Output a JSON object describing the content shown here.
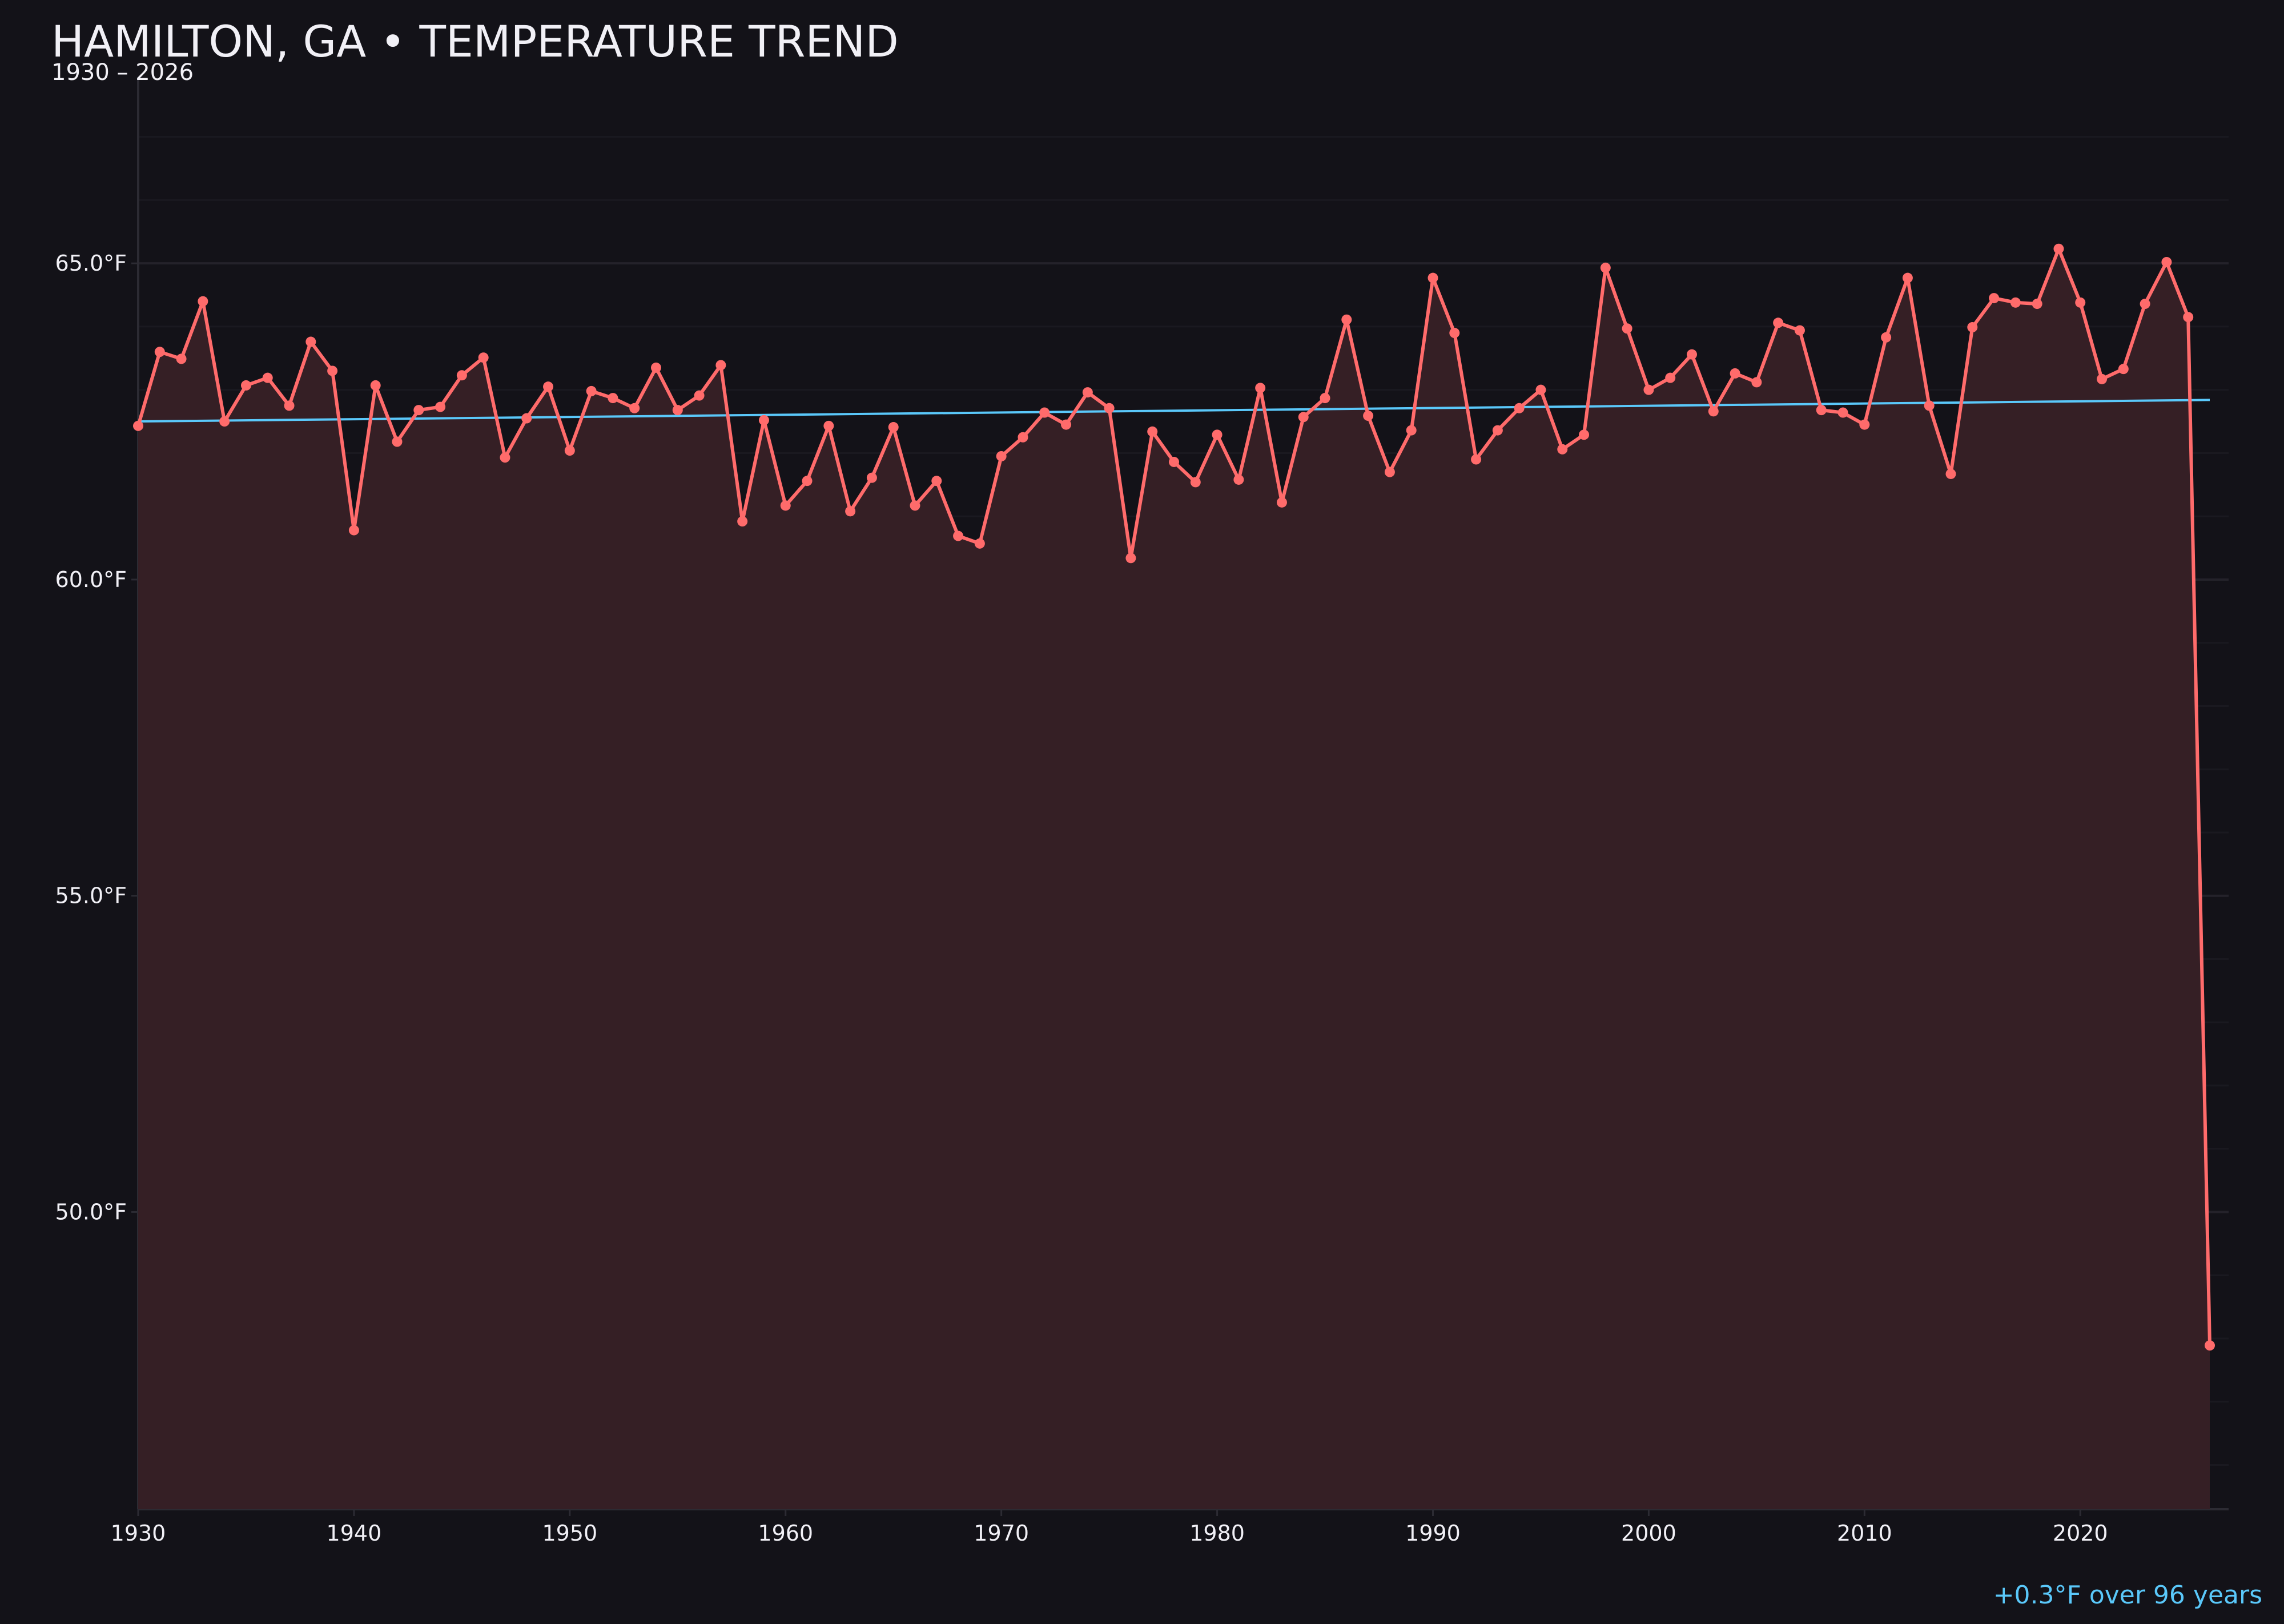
{
  "header": {
    "title": "HAMILTON, GA • TEMPERATURE TREND",
    "subtitle": "1930 – 2026"
  },
  "footer": {
    "trend_note": "+0.3°F over 96 years"
  },
  "colors": {
    "background": "#131218",
    "series_line": "#ff6b6b",
    "area_fill": "#351f25",
    "trend_line": "#5ac8fa",
    "text": "#f1f0f6"
  },
  "chart_data": {
    "type": "area",
    "title": "HAMILTON, GA • TEMPERATURE TREND",
    "subtitle": "1930 – 2026",
    "xlabel": "",
    "ylabel": "",
    "xlim": [
      1930,
      2027
    ],
    "ylim": [
      45.3,
      67.9
    ],
    "grid": true,
    "x_ticks": [
      1930,
      1940,
      1950,
      1960,
      1970,
      1980,
      1990,
      2000,
      2010,
      2020
    ],
    "x_tick_labels": [
      "1930",
      "1940",
      "1950",
      "1960",
      "1970",
      "1980",
      "1990",
      "2000",
      "2010",
      "2020"
    ],
    "y_ticks": [
      50,
      55,
      60,
      65
    ],
    "y_tick_labels": [
      "50.0°F",
      "55.0°F",
      "60.0°F",
      "65.0°F"
    ],
    "x": [
      1930,
      1931,
      1932,
      1933,
      1934,
      1935,
      1936,
      1937,
      1938,
      1939,
      1940,
      1941,
      1942,
      1943,
      1944,
      1945,
      1946,
      1947,
      1948,
      1949,
      1950,
      1951,
      1952,
      1953,
      1954,
      1955,
      1956,
      1957,
      1958,
      1959,
      1960,
      1961,
      1962,
      1963,
      1964,
      1965,
      1966,
      1967,
      1968,
      1969,
      1970,
      1971,
      1972,
      1973,
      1974,
      1975,
      1976,
      1977,
      1978,
      1979,
      1980,
      1981,
      1982,
      1983,
      1984,
      1985,
      1986,
      1987,
      1988,
      1989,
      1990,
      1991,
      1992,
      1993,
      1994,
      1995,
      1996,
      1997,
      1998,
      1999,
      2000,
      2001,
      2002,
      2003,
      2004,
      2005,
      2006,
      2007,
      2008,
      2009,
      2010,
      2011,
      2012,
      2013,
      2014,
      2015,
      2016,
      2017,
      2018,
      2019,
      2020,
      2021,
      2022,
      2023,
      2024,
      2025,
      2026
    ],
    "values": [
      62.43,
      63.6,
      63.49,
      64.4,
      62.5,
      63.07,
      63.19,
      62.75,
      63.76,
      63.3,
      60.78,
      63.07,
      62.18,
      62.68,
      62.73,
      63.23,
      63.51,
      61.93,
      62.55,
      63.05,
      62.04,
      62.98,
      62.87,
      62.71,
      63.35,
      62.68,
      62.91,
      63.39,
      60.92,
      62.52,
      61.17,
      61.56,
      62.43,
      61.08,
      61.61,
      62.41,
      61.17,
      61.56,
      60.69,
      60.57,
      61.95,
      62.25,
      62.64,
      62.45,
      62.96,
      62.71,
      60.34,
      62.34,
      61.86,
      61.54,
      62.29,
      61.58,
      63.03,
      61.22,
      62.57,
      62.87,
      64.11,
      62.59,
      61.7,
      62.36,
      64.77,
      63.9,
      61.9,
      62.36,
      62.71,
      63.0,
      62.06,
      62.29,
      64.93,
      63.97,
      63.0,
      63.19,
      63.56,
      62.66,
      63.26,
      63.12,
      64.06,
      63.94,
      62.68,
      62.64,
      62.45,
      63.83,
      64.77,
      62.75,
      61.67,
      63.99,
      64.45,
      64.38,
      64.36,
      65.23,
      64.38,
      63.17,
      63.33,
      64.36,
      65.02,
      64.15,
      47.89
    ],
    "trend": {
      "x": [
        1930,
        2026
      ],
      "y": [
        62.5,
        62.84
      ]
    },
    "annotation": "+0.3°F over 96 years"
  }
}
